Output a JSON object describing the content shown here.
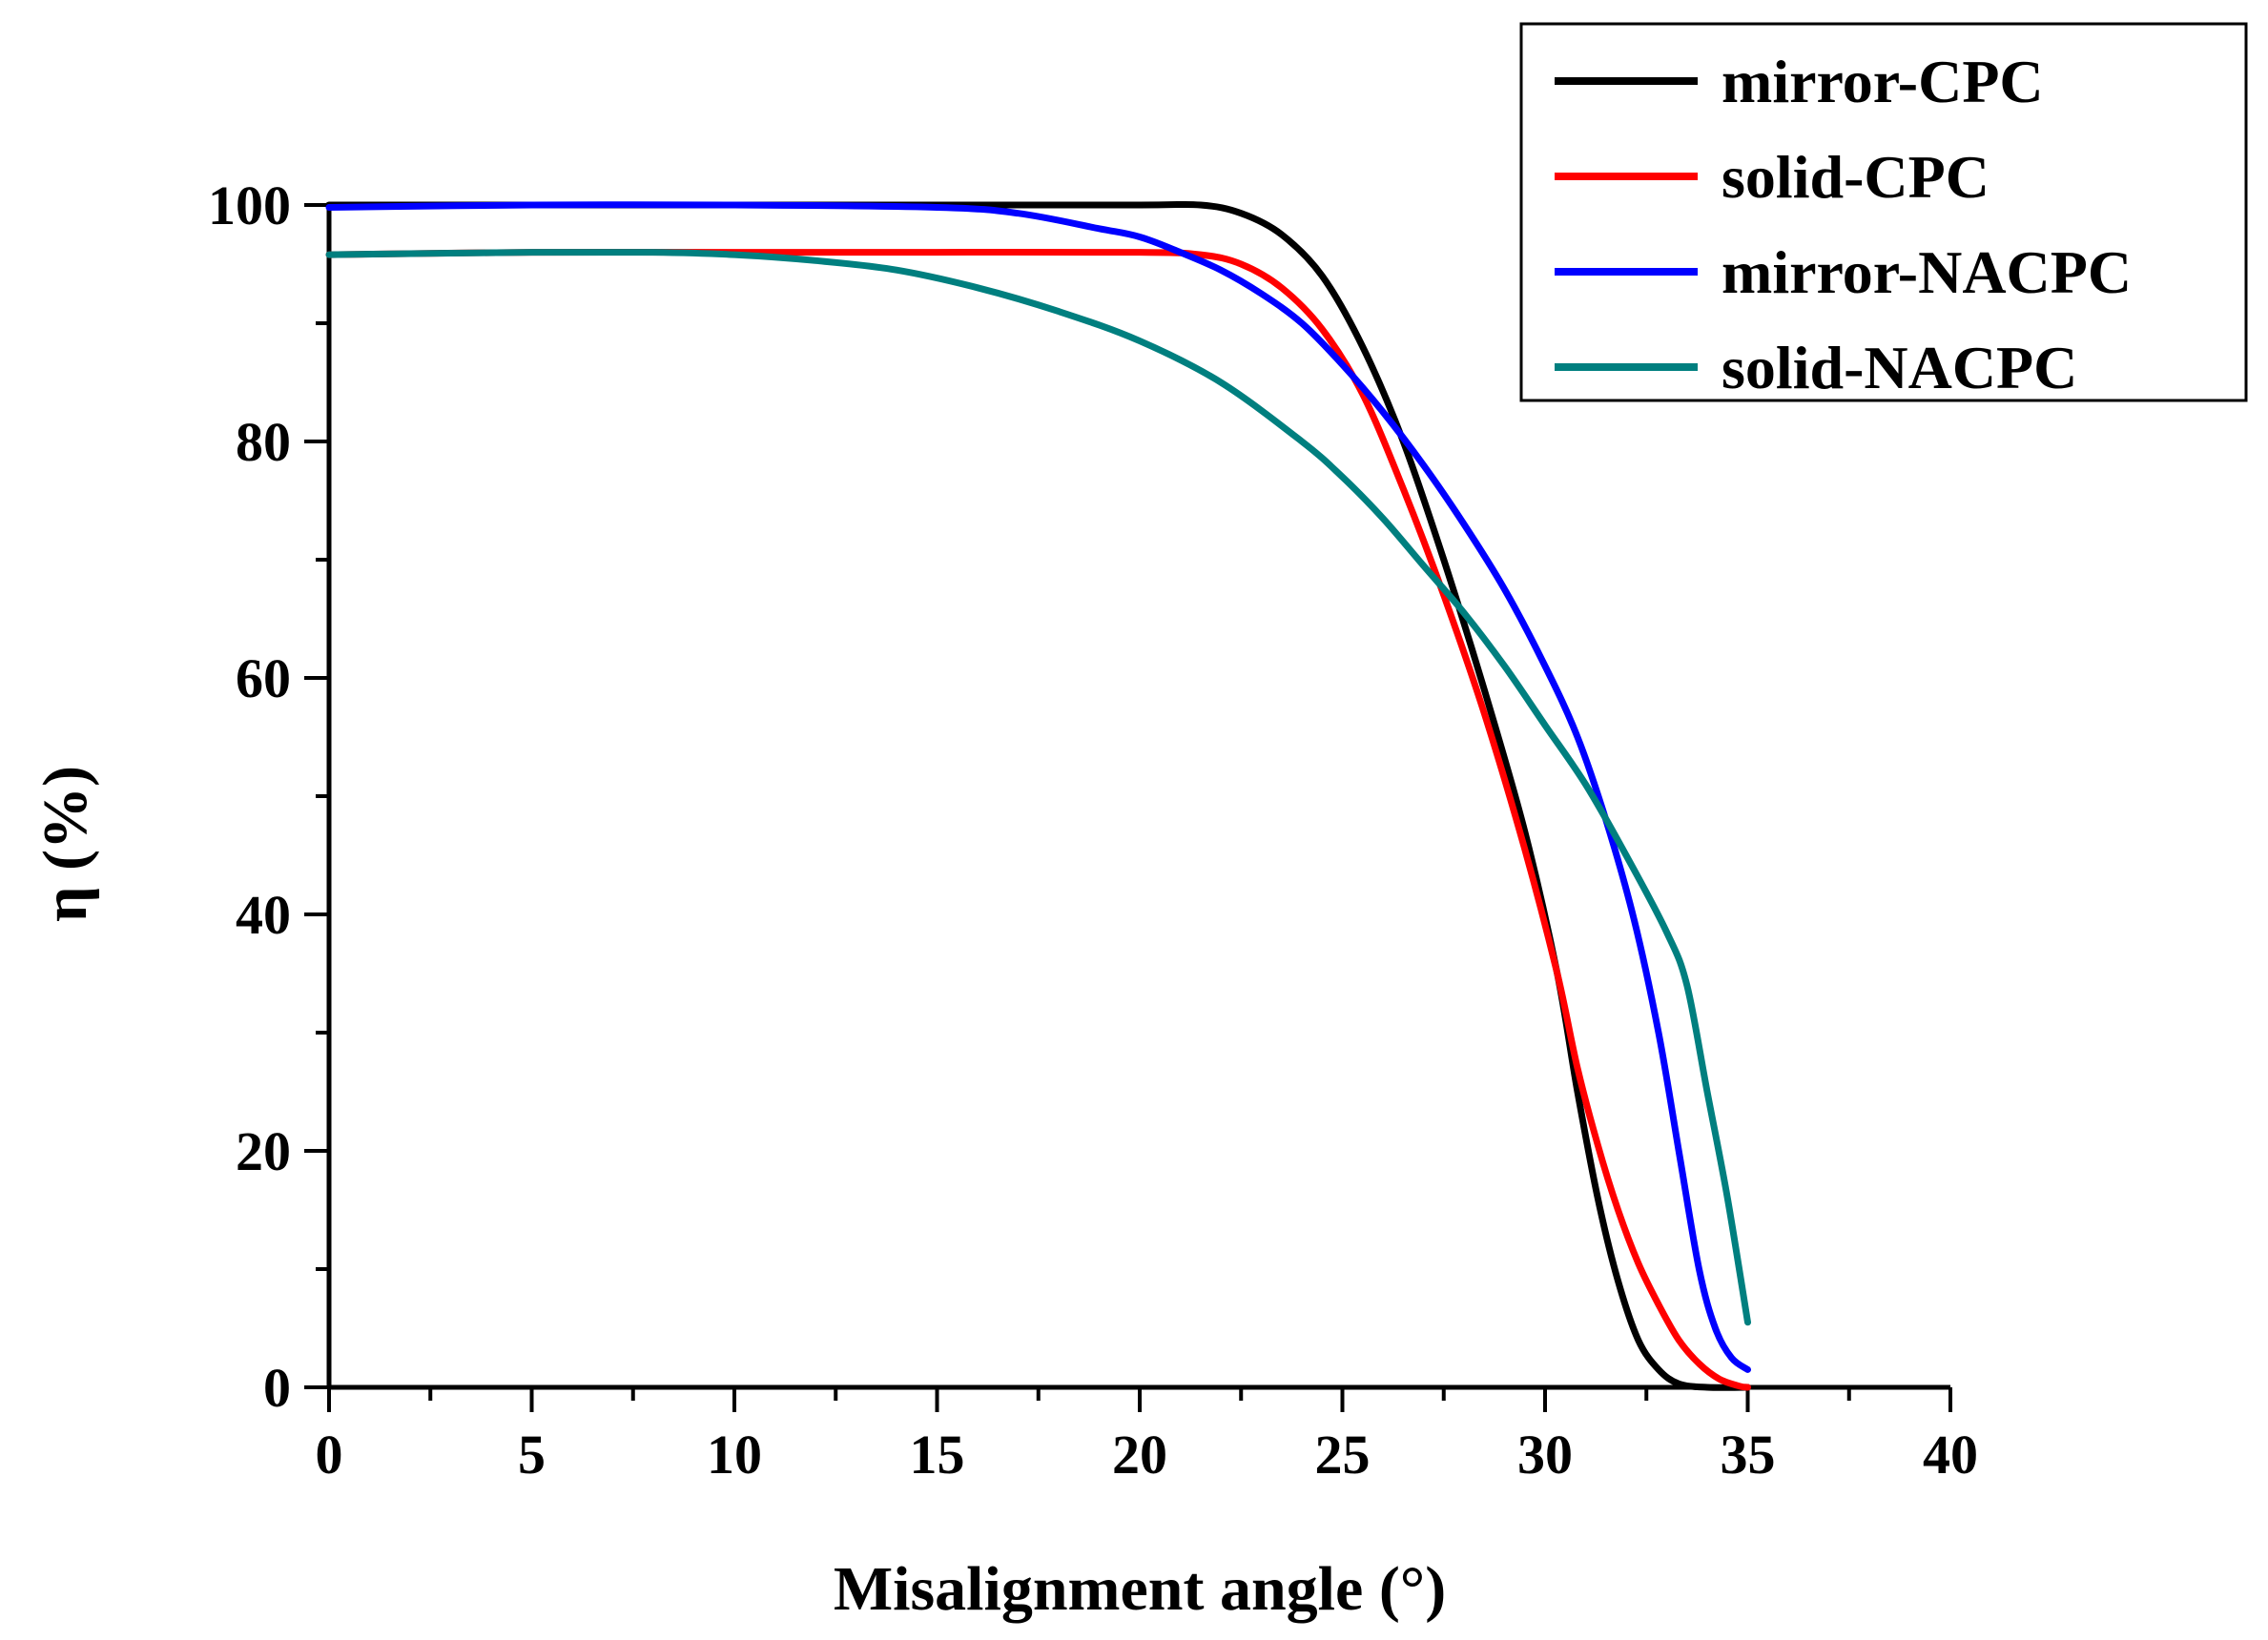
{
  "chart_data": {
    "type": "line",
    "title": "",
    "xlabel": "Misalignment angle (°)",
    "ylabel": "η (%)",
    "xlim": [
      0,
      40
    ],
    "ylim": [
      0,
      100
    ],
    "x_ticks": [
      0,
      5,
      10,
      15,
      20,
      25,
      30,
      35,
      40
    ],
    "y_ticks": [
      0,
      20,
      40,
      60,
      80,
      100
    ],
    "grid": false,
    "legend_position": "top-right",
    "series": [
      {
        "name": "mirror-CPC",
        "color": "#000000",
        "points": [
          [
            0,
            100
          ],
          [
            5,
            100
          ],
          [
            10,
            100
          ],
          [
            15,
            100
          ],
          [
            20,
            100
          ],
          [
            21.5,
            100
          ],
          [
            22.5,
            99.3
          ],
          [
            23.5,
            97.5
          ],
          [
            24.5,
            94
          ],
          [
            25.5,
            88
          ],
          [
            26.5,
            80
          ],
          [
            27.5,
            70
          ],
          [
            28.5,
            59
          ],
          [
            29.5,
            47
          ],
          [
            30.3,
            35
          ],
          [
            30.8,
            25
          ],
          [
            31.3,
            16
          ],
          [
            31.8,
            9
          ],
          [
            32.3,
            4
          ],
          [
            32.8,
            1.5
          ],
          [
            33.3,
            0.3
          ],
          [
            34,
            0
          ],
          [
            35,
            0
          ]
        ]
      },
      {
        "name": "solid-CPC",
        "color": "#ff0000",
        "points": [
          [
            0,
            95.8
          ],
          [
            5,
            96
          ],
          [
            10,
            96
          ],
          [
            15,
            96
          ],
          [
            20,
            96
          ],
          [
            21.5,
            95.8
          ],
          [
            22.5,
            95
          ],
          [
            23.5,
            93
          ],
          [
            24.5,
            89.5
          ],
          [
            25.5,
            84
          ],
          [
            26.5,
            76
          ],
          [
            27.5,
            67
          ],
          [
            28.5,
            57
          ],
          [
            29.5,
            45.5
          ],
          [
            30.3,
            35
          ],
          [
            30.8,
            27
          ],
          [
            31.3,
            20.5
          ],
          [
            31.8,
            15
          ],
          [
            32.3,
            10.5
          ],
          [
            32.8,
            7
          ],
          [
            33.3,
            4
          ],
          [
            33.8,
            2
          ],
          [
            34.3,
            0.7
          ],
          [
            34.8,
            0.1
          ],
          [
            35,
            0
          ]
        ]
      },
      {
        "name": "mirror-NACPC",
        "color": "#0000ff",
        "points": [
          [
            0,
            99.8
          ],
          [
            5,
            100
          ],
          [
            10,
            100
          ],
          [
            15,
            99.8
          ],
          [
            17,
            99.3
          ],
          [
            19,
            98
          ],
          [
            20,
            97.3
          ],
          [
            21,
            96
          ],
          [
            22,
            94.5
          ],
          [
            23,
            92.5
          ],
          [
            24,
            90
          ],
          [
            25,
            86.5
          ],
          [
            26,
            82.5
          ],
          [
            27,
            78
          ],
          [
            28,
            73
          ],
          [
            29,
            67.5
          ],
          [
            30,
            61
          ],
          [
            30.8,
            55
          ],
          [
            31.5,
            48
          ],
          [
            32.2,
            39.5
          ],
          [
            32.8,
            30
          ],
          [
            33.3,
            20
          ],
          [
            33.8,
            10
          ],
          [
            34.2,
            5
          ],
          [
            34.6,
            2.5
          ],
          [
            35,
            1.5
          ]
        ]
      },
      {
        "name": "solid-NACPC",
        "color": "#007f7f",
        "points": [
          [
            0,
            95.8
          ],
          [
            5,
            96
          ],
          [
            8,
            96
          ],
          [
            10,
            95.8
          ],
          [
            12,
            95.3
          ],
          [
            14,
            94.5
          ],
          [
            16,
            93
          ],
          [
            18,
            91
          ],
          [
            20,
            88.5
          ],
          [
            22,
            85
          ],
          [
            24,
            80
          ],
          [
            25,
            77
          ],
          [
            26,
            73.5
          ],
          [
            27,
            69.5
          ],
          [
            28,
            65.5
          ],
          [
            29,
            61
          ],
          [
            30,
            56
          ],
          [
            31,
            51
          ],
          [
            32,
            45
          ],
          [
            33,
            38.5
          ],
          [
            33.5,
            34
          ],
          [
            34,
            25
          ],
          [
            34.5,
            16
          ],
          [
            35,
            5.5
          ]
        ]
      }
    ]
  }
}
